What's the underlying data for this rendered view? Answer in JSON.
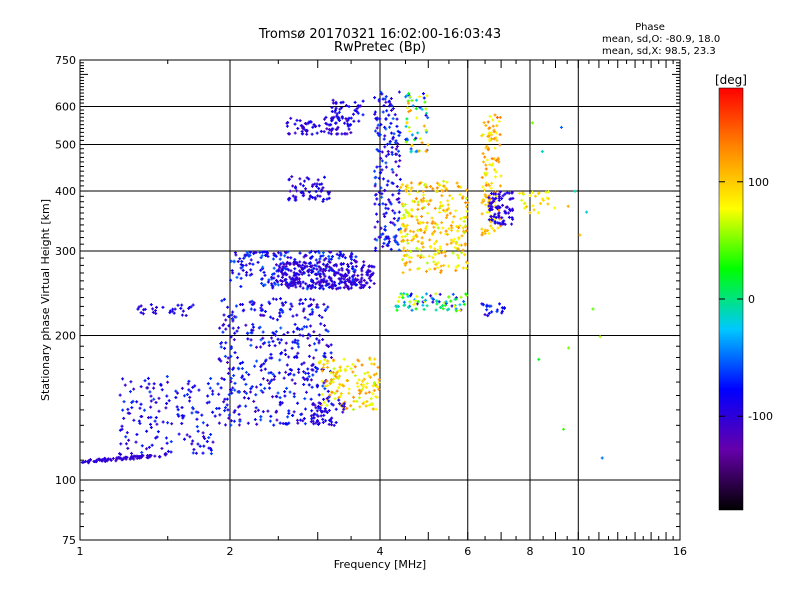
{
  "chart_data": {
    "type": "scatter",
    "title": "Tromsø 20170321 16:02:00-16:03:43",
    "subtitle": "RwPretec (Bp)",
    "xlabel": "Frequency [MHz]",
    "ylabel": "Stationary phase Virtual Height [km]",
    "x_scale": "log",
    "y_scale": "log",
    "xlim": [
      1,
      16
    ],
    "ylim": [
      75,
      750
    ],
    "x_ticks": [
      1,
      2,
      4,
      6,
      8,
      10,
      16
    ],
    "x_tick_labels": [
      "1",
      "2",
      "4",
      "6",
      "8",
      "10",
      "16"
    ],
    "y_ticks": [
      75,
      100,
      200,
      300,
      400,
      500,
      600,
      750
    ],
    "y_tick_labels": [
      "75",
      "100",
      "200",
      "300",
      "400",
      "500",
      "600",
      "750"
    ],
    "grid": true,
    "stats": {
      "heading": "Phase",
      "o_line": "mean, sd,O: -80.9, 18.0",
      "x_line": "mean, sd,X:  98.5, 23.3"
    },
    "colorbar": {
      "label": "[deg]",
      "range": [
        -180,
        180
      ],
      "ticks": [
        100,
        0,
        -100
      ],
      "tick_labels": [
        "100",
        "0",
        "-100"
      ],
      "stops": [
        "#000000",
        "#6600aa",
        "#0000ff",
        "#00c8ff",
        "#00ff00",
        "#ffff00",
        "#ff8800",
        "#ff0000"
      ]
    },
    "clusters": [
      {
        "f": [
          1.0,
          1.5
        ],
        "h": [
          108,
          114
        ],
        "phase": [
          -110,
          -95
        ],
        "n": 90,
        "trend": "rising-low"
      },
      {
        "f": [
          1.2,
          1.9
        ],
        "h": [
          113,
          165
        ],
        "phase": [
          -110,
          -60
        ],
        "n": 160
      },
      {
        "f": [
          1.3,
          1.7
        ],
        "h": [
          220,
          232
        ],
        "phase": [
          -105,
          -80
        ],
        "n": 30
      },
      {
        "f": [
          1.9,
          3.2
        ],
        "h": [
          130,
          240
        ],
        "phase": [
          -115,
          -55
        ],
        "n": 420
      },
      {
        "f": [
          2.0,
          3.6
        ],
        "h": [
          250,
          300
        ],
        "phase": [
          -110,
          -50
        ],
        "n": 260
      },
      {
        "f": [
          2.5,
          3.9
        ],
        "h": [
          250,
          285
        ],
        "phase": [
          -115,
          -90
        ],
        "n": 240
      },
      {
        "f": [
          2.6,
          3.2
        ],
        "h": [
          380,
          430
        ],
        "phase": [
          -110,
          -75
        ],
        "n": 60
      },
      {
        "f": [
          2.6,
          3.5
        ],
        "h": [
          525,
          570
        ],
        "phase": [
          -115,
          -80
        ],
        "n": 80
      },
      {
        "f": [
          3.2,
          3.7
        ],
        "h": [
          555,
          620
        ],
        "phase": [
          -110,
          -70
        ],
        "n": 40
      },
      {
        "f": [
          3.9,
          4.4
        ],
        "h": [
          300,
          650
        ],
        "phase": [
          -115,
          -50
        ],
        "n": 180
      },
      {
        "f": [
          4.3,
          6.0
        ],
        "h": [
          225,
          245
        ],
        "phase": [
          -110,
          80
        ],
        "n": 80
      },
      {
        "f": [
          4.4,
          6.0
        ],
        "h": [
          270,
          420
        ],
        "phase": [
          60,
          130
        ],
        "n": 280
      },
      {
        "f": [
          4.5,
          5.0
        ],
        "h": [
          480,
          640
        ],
        "phase": [
          -90,
          130
        ],
        "n": 60
      },
      {
        "f": [
          3.0,
          4.0
        ],
        "h": [
          140,
          180
        ],
        "phase": [
          60,
          130
        ],
        "n": 140
      },
      {
        "f": [
          2.9,
          3.4
        ],
        "h": [
          130,
          150
        ],
        "phase": [
          -110,
          -80
        ],
        "n": 50
      },
      {
        "f": [
          6.4,
          7.0
        ],
        "h": [
          320,
          580
        ],
        "phase": [
          70,
          140
        ],
        "n": 120
      },
      {
        "f": [
          6.6,
          7.4
        ],
        "h": [
          340,
          400
        ],
        "phase": [
          -110,
          -80
        ],
        "n": 80
      },
      {
        "f": [
          6.4,
          7.2
        ],
        "h": [
          220,
          235
        ],
        "phase": [
          -110,
          -60
        ],
        "n": 20
      },
      {
        "f": [
          7.5,
          9.0
        ],
        "h": [
          360,
          400
        ],
        "phase": [
          60,
          110
        ],
        "n": 25
      },
      {
        "f": [
          8.0,
          12.0
        ],
        "h": [
          100,
          600
        ],
        "phase": [
          -100,
          130
        ],
        "n": 14
      }
    ]
  }
}
